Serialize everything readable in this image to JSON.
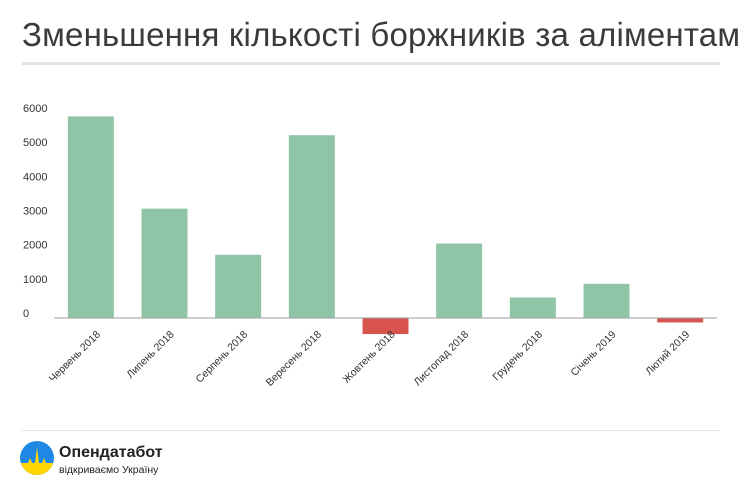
{
  "header": {
    "title": "Зменьшення кількості боржників за аліментами"
  },
  "chart_data": {
    "type": "bar",
    "title": "Зменьшення кількості боржників за аліментами",
    "xlabel": "",
    "ylabel": "",
    "categories": [
      "Червень 2018",
      "Липень 2018",
      "Серпень 2018",
      "Вересень 2018",
      "Жовтень 2018",
      "Листопад 2018",
      "Грудень 2018",
      "Січень 2019",
      "Лютий 2019"
    ],
    "values": [
      5900,
      3200,
      1850,
      5350,
      -470,
      2180,
      600,
      1000,
      -130
    ],
    "ylim": [
      -500,
      6000
    ],
    "yticks": [
      0,
      1000,
      2000,
      3000,
      4000,
      5000,
      6000
    ],
    "grid": false,
    "legend": "none",
    "colors": {
      "positive": "#8fc4a6",
      "negative": "#d9534f"
    }
  },
  "brand": {
    "name": "Опендатабот",
    "tagline": "відкриваємо Україну",
    "logo_icon": "opendatabot-logo-icon",
    "logo_colors": {
      "top": "#1e88e5",
      "bottom": "#ffd600"
    }
  }
}
